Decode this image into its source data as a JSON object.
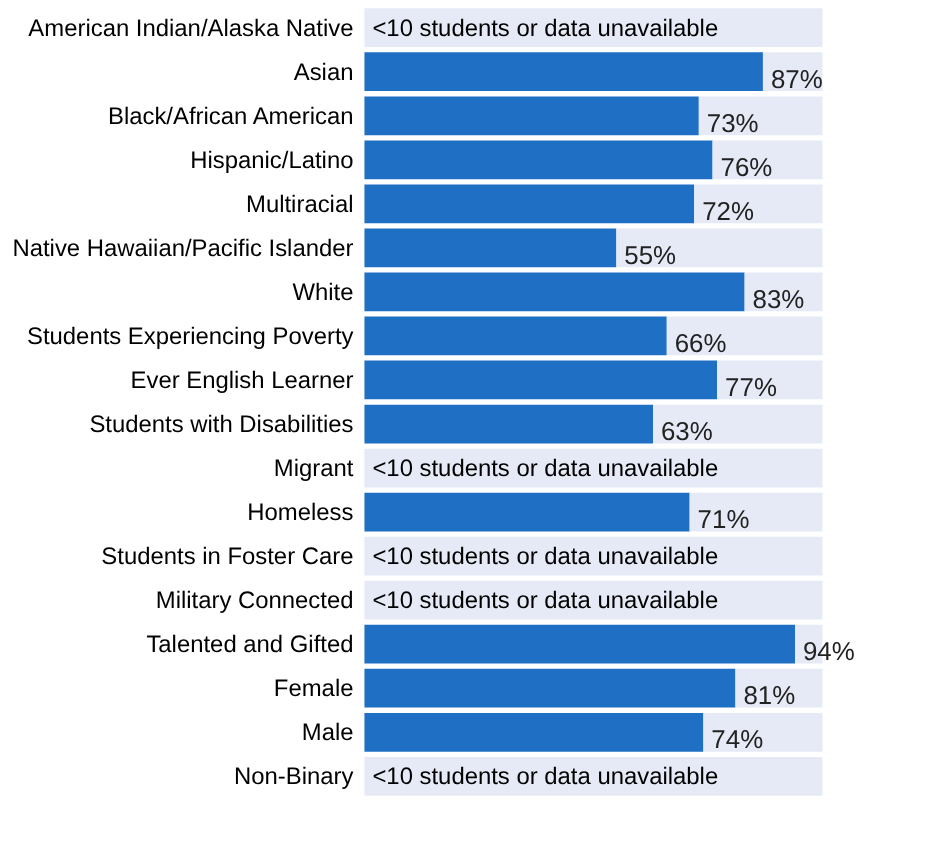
{
  "chart_data": {
    "type": "bar",
    "orientation": "horizontal",
    "xlim": [
      0,
      100
    ],
    "tick_labels": "y",
    "grid": false,
    "legend": false,
    "categories": [
      "American Indian/Alaska Native",
      "Asian",
      "Black/African American",
      "Hispanic/Latino",
      "Multiracial",
      "Native Hawaiian/Pacific Islander",
      "White",
      "Students Experiencing Poverty",
      "Ever English Learner",
      "Students with Disabilities",
      "Migrant",
      "Homeless",
      "Students in Foster Care",
      "Military Connected",
      "Talented and Gifted",
      "Female",
      "Male",
      "Non-Binary"
    ],
    "stacked": true,
    "series": [
      {
        "color": "#1f6fc5",
        "values": [
          null,
          87,
          73,
          76,
          72,
          55,
          83,
          66,
          77,
          63,
          null,
          71,
          null,
          null,
          94,
          81,
          74,
          null
        ],
        "value_labels": [
          null,
          "87%",
          "73%",
          "76%",
          "72%",
          "55%",
          "83%",
          "66%",
          "77%",
          "63%",
          null,
          "71%",
          null,
          null,
          "94%",
          "81%",
          "74%",
          null
        ]
      },
      {
        "color": "#e6eaf6",
        "values": [
          100,
          13,
          27,
          24,
          28,
          45,
          17,
          34,
          23,
          37,
          100,
          29,
          100,
          100,
          6,
          19,
          26,
          100
        ]
      }
    ],
    "annotations": [
      "<10 students or data unavailable",
      "<10 students or data unavailable",
      "<10 students or data unavailable",
      "<10 students or data unavailable",
      "<10 students or data unavailable"
    ]
  }
}
